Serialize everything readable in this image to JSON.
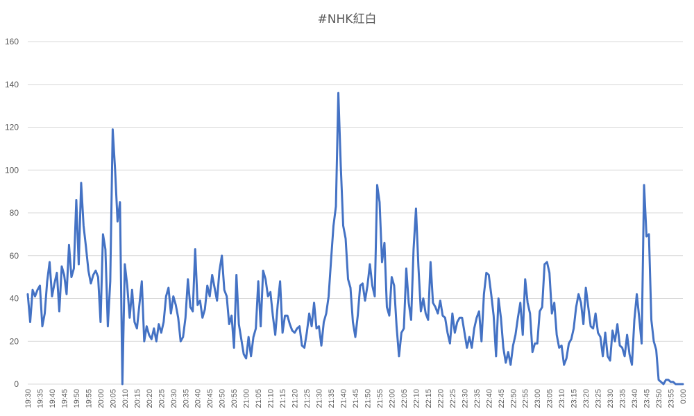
{
  "chart_data": {
    "type": "line",
    "title": "#NHK紅白",
    "xlabel": "",
    "ylabel": "",
    "ylim": [
      0,
      160
    ],
    "yticks": [
      0,
      20,
      40,
      60,
      80,
      100,
      120,
      140,
      160
    ],
    "grid": true,
    "legend": "none",
    "line_color": "#4472c4",
    "xtick_labels": [
      "19:30",
      "19:35",
      "19:40",
      "19:45",
      "19:50",
      "19:55",
      "20:00",
      "20:05",
      "20:10",
      "20:15",
      "20:20",
      "20:25",
      "20:30",
      "20:35",
      "20:40",
      "20:45",
      "20:50",
      "20:55",
      "21:00",
      "21:05",
      "21:10",
      "21:15",
      "21:20",
      "21:25",
      "21:30",
      "21:35",
      "21:40",
      "21:45",
      "21:50",
      "21:55",
      "22:00",
      "22:05",
      "22:10",
      "22:15",
      "22:20",
      "22:25",
      "22:30",
      "22:35",
      "22:40",
      "22:45",
      "22:50",
      "22:55",
      "23:00",
      "23:05",
      "23:10",
      "23:15",
      "23:20",
      "23:25",
      "23:30",
      "23:35",
      "23:40",
      "23:45",
      "23:50",
      "23:55",
      "0:00"
    ],
    "series": [
      {
        "values": [
          42,
          29,
          44,
          41,
          44,
          46,
          27,
          33,
          48,
          57,
          41,
          47,
          52,
          34,
          55,
          51,
          42,
          65,
          50,
          54,
          86,
          56,
          94,
          74,
          64,
          53,
          47,
          51,
          53,
          50,
          29,
          70,
          63,
          27,
          48,
          119,
          100,
          76,
          85,
          0,
          56,
          46,
          31,
          44,
          29,
          26,
          37,
          48,
          20,
          27,
          23,
          21,
          26,
          20,
          28,
          24,
          29,
          41,
          45,
          33,
          41,
          37,
          31,
          20,
          22,
          31,
          49,
          36,
          34,
          63,
          37,
          39,
          31,
          35,
          46,
          41,
          51,
          45,
          39,
          53,
          60,
          44,
          41,
          28,
          32,
          17,
          51,
          28,
          21,
          14,
          12,
          22,
          13,
          22,
          26,
          48,
          27,
          53,
          49,
          41,
          43,
          32,
          23,
          37,
          48,
          24,
          32,
          32,
          28,
          25,
          24,
          26,
          27,
          18,
          17,
          24,
          33,
          27,
          38,
          26,
          27,
          18,
          29,
          33,
          41,
          58,
          74,
          83,
          136,
          102,
          74,
          68,
          49,
          45,
          29,
          22,
          32,
          46,
          47,
          39,
          46,
          56,
          46,
          41,
          93,
          85,
          57,
          66,
          36,
          32,
          50,
          46,
          27,
          13,
          24,
          26,
          54,
          38,
          30,
          63,
          82,
          55,
          34,
          40,
          33,
          30,
          57,
          38,
          36,
          33,
          39,
          32,
          31,
          24,
          19,
          33,
          24,
          29,
          31,
          31,
          24,
          17,
          22,
          17,
          26,
          31,
          34,
          20,
          42,
          52,
          51,
          42,
          32,
          13,
          40,
          31,
          17,
          10,
          15,
          9,
          18,
          23,
          31,
          38,
          23,
          49,
          38,
          33,
          15,
          19,
          19,
          34,
          36,
          56,
          57,
          52,
          33,
          38,
          23,
          17,
          18,
          9,
          12,
          19,
          21,
          26,
          36,
          42,
          38,
          28,
          45,
          36,
          27,
          26,
          33,
          24,
          22,
          13,
          24,
          13,
          11,
          25,
          20,
          28,
          18,
          17,
          13,
          23,
          14,
          9,
          30,
          42,
          31,
          19,
          93,
          69,
          70,
          30,
          20,
          16,
          2,
          1,
          0,
          2,
          2,
          1,
          1,
          0,
          0,
          0,
          0
        ]
      }
    ]
  }
}
